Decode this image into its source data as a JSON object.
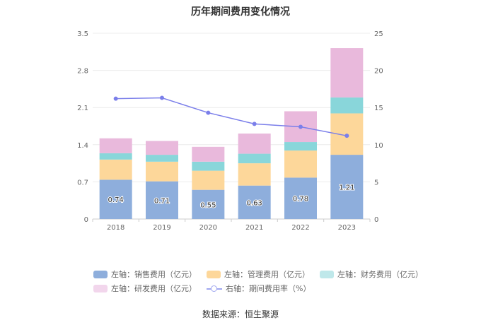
{
  "chart_data": {
    "type": "bar",
    "title": "历年期间费用变化情况",
    "categories": [
      "2018",
      "2019",
      "2020",
      "2021",
      "2022",
      "2023"
    ],
    "stacked": true,
    "left_axis": {
      "ylim": [
        0,
        3.5
      ],
      "ticks": [
        "0",
        "0.7",
        "1.4",
        "2.1",
        "2.8",
        "3.5"
      ]
    },
    "right_axis": {
      "ylim": [
        0,
        25
      ],
      "ticks": [
        "0",
        "5",
        "10",
        "15",
        "20",
        "25"
      ]
    },
    "series": [
      {
        "name": "左轴：销售费用（亿元）",
        "type": "bar",
        "axis": "left",
        "color": "#8eaedc",
        "values": [
          0.74,
          0.71,
          0.55,
          0.63,
          0.78,
          1.21
        ],
        "labels": [
          "0.74",
          "0.71",
          "0.55",
          "0.63",
          "0.78",
          "1.21"
        ]
      },
      {
        "name": "左轴：管理费用（亿元）",
        "type": "bar",
        "axis": "left",
        "color": "#fdd79a",
        "values": [
          0.38,
          0.37,
          0.36,
          0.42,
          0.51,
          0.78
        ]
      },
      {
        "name": "左轴：财务费用（亿元）",
        "type": "bar",
        "axis": "left",
        "color": "#89d6da",
        "values": [
          0.12,
          0.13,
          0.17,
          0.18,
          0.16,
          0.3
        ]
      },
      {
        "name": "左轴：研发费用（亿元）",
        "type": "bar",
        "axis": "left",
        "color": "#e9b9dc",
        "values": [
          0.28,
          0.26,
          0.28,
          0.38,
          0.58,
          0.93
        ]
      },
      {
        "name": "右轴：期间费用率（%）",
        "type": "line",
        "axis": "right",
        "color": "#7b7fea",
        "values": [
          16.2,
          16.3,
          14.3,
          12.8,
          12.4,
          11.2
        ]
      }
    ],
    "grid": true,
    "legend_position": "bottom"
  },
  "source": "数据来源：恒生聚源"
}
